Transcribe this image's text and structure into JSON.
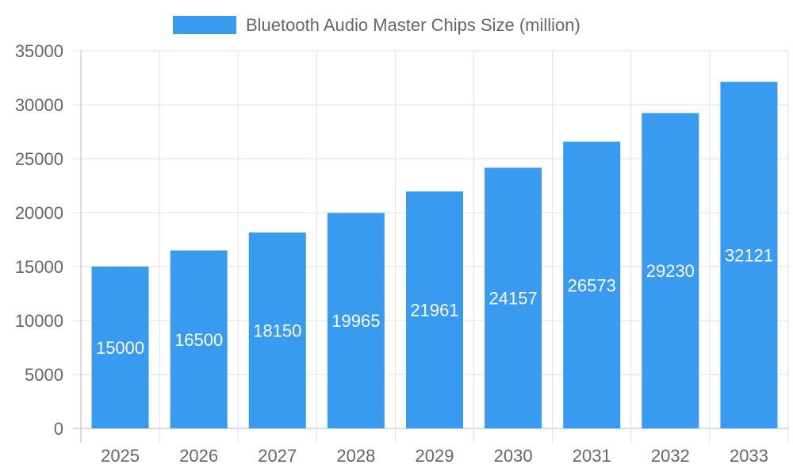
{
  "chart_data": {
    "type": "bar",
    "title": "",
    "xlabel": "",
    "ylabel": "",
    "categories": [
      "2025",
      "2026",
      "2027",
      "2028",
      "2029",
      "2030",
      "2031",
      "2032",
      "2033"
    ],
    "series": [
      {
        "name": "Bluetooth Audio Master Chips Size (million)",
        "values": [
          15000,
          16500,
          18150,
          19965,
          21961,
          24157,
          26573,
          29230,
          32121
        ],
        "color": "#389bf0"
      }
    ],
    "ylim": [
      0,
      35000
    ],
    "yticks": [
      0,
      5000,
      10000,
      15000,
      20000,
      25000,
      30000,
      35000
    ],
    "grid": true,
    "legend_position": "top",
    "data_labels": true,
    "data_label_color": "#ffffff",
    "tick_label_color": "#666666",
    "grid_color": "#e0e0e0"
  }
}
